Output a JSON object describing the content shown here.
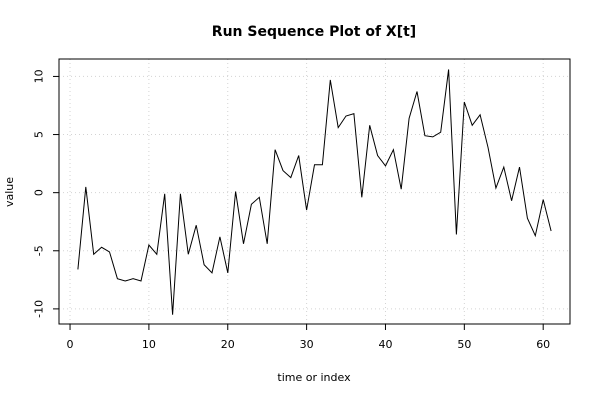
{
  "chart_data": {
    "type": "line",
    "title": "Run Sequence Plot of X[t]",
    "xlabel": "time or index",
    "ylabel": "value",
    "xlim": [
      -1.4,
      63.4
    ],
    "ylim": [
      -11.3,
      11.5
    ],
    "x_ticks": [
      0,
      10,
      20,
      30,
      40,
      50,
      60
    ],
    "x_tick_labels": [
      "0",
      "10",
      "20",
      "30",
      "40",
      "50",
      "60"
    ],
    "y_ticks": [
      -10,
      -5,
      0,
      5,
      10
    ],
    "y_tick_labels": [
      "-10",
      "-5",
      "0",
      "5",
      "10"
    ],
    "grid": true,
    "series": [
      {
        "color": "#000000",
        "x": [
          1,
          2,
          3,
          4,
          5,
          6,
          7,
          8,
          9,
          10,
          11,
          12,
          13,
          14,
          15,
          16,
          17,
          18,
          19,
          20,
          21,
          22,
          23,
          24,
          25,
          26,
          27,
          28,
          29,
          30,
          31,
          32,
          33,
          34,
          35,
          36,
          37,
          38,
          39,
          40,
          41,
          42,
          43,
          44,
          45,
          46,
          47,
          48,
          49,
          50,
          51,
          52,
          53,
          54,
          55,
          56,
          57,
          58,
          59,
          60,
          61
        ],
        "values": [
          -6.6,
          0.5,
          -5.3,
          -4.7,
          -5.1,
          -7.4,
          -7.6,
          -7.4,
          -7.6,
          -4.5,
          -5.3,
          -0.1,
          -10.5,
          -0.1,
          -5.3,
          -2.8,
          -6.2,
          -6.9,
          -3.8,
          -6.9,
          0.1,
          -4.4,
          -1.0,
          -0.4,
          -4.4,
          3.7,
          1.9,
          1.3,
          3.2,
          -1.5,
          2.4,
          2.4,
          9.7,
          5.6,
          6.6,
          6.8,
          -0.4,
          5.8,
          3.2,
          2.3,
          3.7,
          0.3,
          6.4,
          8.7,
          4.9,
          4.8,
          5.2,
          10.6,
          -3.6,
          7.8,
          5.8,
          6.7,
          3.9,
          0.4,
          2.2,
          -0.7,
          2.2,
          -2.2,
          -3.7,
          -0.6,
          -3.3
        ]
      }
    ]
  }
}
